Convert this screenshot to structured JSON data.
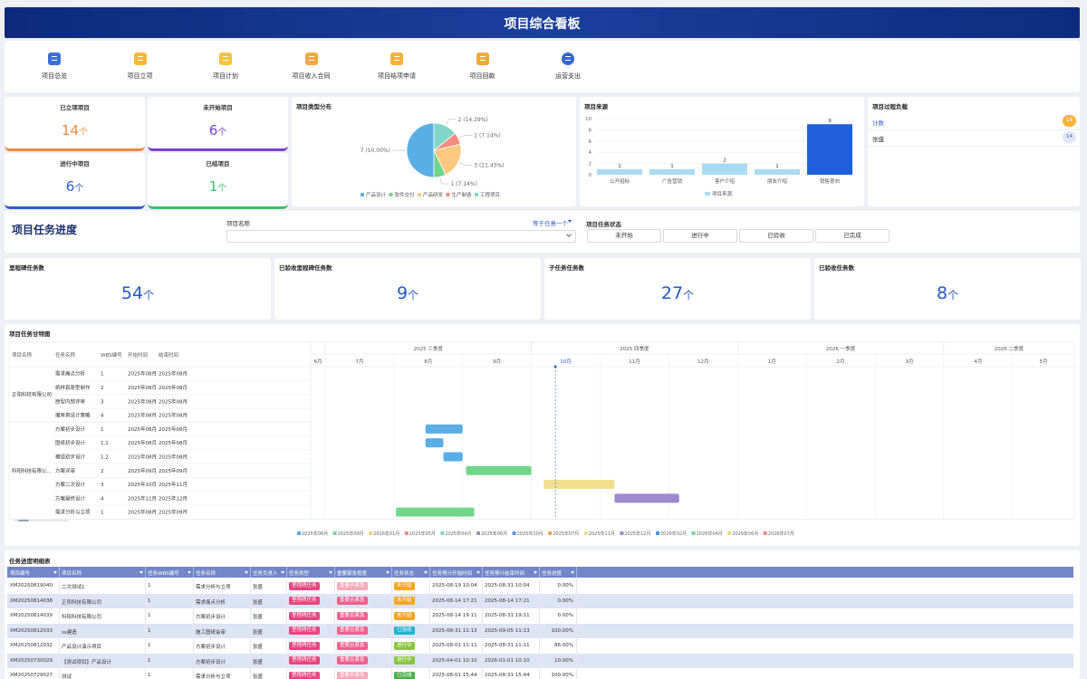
{
  "header": {
    "title": "项目综合看板"
  },
  "nav": [
    {
      "label": "项目总览",
      "color": "#3d6fd8"
    },
    {
      "label": "项目立项",
      "color": "#f5b83d"
    },
    {
      "label": "项目计划",
      "color": "#f5c242"
    },
    {
      "label": "项目收入合同",
      "color": "#f2a93b"
    },
    {
      "label": "项目结项申请",
      "color": "#f4b03f"
    },
    {
      "label": "项目回款",
      "color": "#f3a73a"
    },
    {
      "label": "运营支出",
      "color": "#3566cf"
    }
  ],
  "kpis": [
    {
      "title": "已立项项目",
      "value": 14,
      "unit": "个",
      "color": "#f08a3c"
    },
    {
      "title": "未开始项目",
      "value": 6,
      "unit": "个",
      "color": "#7b3fd8"
    },
    {
      "title": "进行中项目",
      "value": 6,
      "unit": "个",
      "color": "#2f5fc4"
    },
    {
      "title": "已结项目",
      "value": 1,
      "unit": "个",
      "color": "#3cbf6b"
    }
  ],
  "chart_data": [
    {
      "type": "pie",
      "title": "项目类型分布",
      "categories": [
        "产品设计",
        "软件交付",
        "产品研发",
        "生产制造",
        "工程项目"
      ],
      "values": [
        7,
        1,
        3,
        1,
        2
      ],
      "value_labels": [
        "7 (50.00%)",
        "1 (7.14%)",
        "3 (21.43%)",
        "1 (7.14%)",
        "2 (14.29%)"
      ],
      "colors": [
        "#5aaee6",
        "#6dd48a",
        "#fbc97f",
        "#f28b82",
        "#7fd6c8"
      ]
    },
    {
      "type": "bar",
      "title": "项目来源",
      "categories": [
        "公开招标",
        "广告营销",
        "客户介绍",
        "朋友介绍",
        "销售意向"
      ],
      "series": [
        {
          "name": "项目来源",
          "color": "#a9dcf3",
          "colors": [
            "#a9dcf3",
            "#a9dcf3",
            "#a9dcf3",
            "#a9dcf3",
            "#1f5fdc"
          ],
          "values": [
            1,
            1,
            2,
            1,
            9
          ]
        }
      ],
      "ylim": [
        0,
        10
      ],
      "yticks": [
        0,
        2,
        4,
        6,
        8,
        10
      ],
      "grid": true
    },
    {
      "type": "gantt",
      "title": "项目任务甘特图",
      "columns": [
        "项目名称",
        "任务名称",
        "WBS编号",
        "开始时间",
        "结束时间"
      ],
      "groups": [
        {
          "project": "正阳科技有限公司",
          "tasks": [
            {
              "task": "需求痛点分析",
              "wbs": "1",
              "start": "2025年08月",
              "end": "2025年08月",
              "bar": null,
              "color": null
            },
            {
              "task": "纸样真原型制作",
              "wbs": "2",
              "start": "2025年08月",
              "end": "2025年08月",
              "bar": null,
              "color": null
            },
            {
              "task": "原型内部评审",
              "wbs": "3",
              "start": "2025年08月",
              "end": "2025年08月",
              "bar": null,
              "color": null
            },
            {
              "task": "撞库真设计策略",
              "wbs": "4",
              "start": "2025年08月",
              "end": "2025年08月",
              "bar": null,
              "color": null
            }
          ]
        },
        {
          "project": "科阳科技有限公...",
          "tasks": [
            {
              "task": "方案初步设计",
              "wbs": "1",
              "start": "2025年08月",
              "end": "2025年08月",
              "bar": [
                8.46,
                9.0
              ],
              "color": "#5aaee6"
            },
            {
              "task": "图纸初步设计",
              "wbs": "1.1",
              "start": "2025年08月",
              "end": "2025年08月",
              "bar": [
                8.46,
                8.72
              ],
              "color": "#5aaee6"
            },
            {
              "task": "模组初步设计",
              "wbs": "1.2",
              "start": "2025年08月",
              "end": "2025年08月",
              "bar": [
                8.72,
                9.0
              ],
              "color": "#5aaee6"
            },
            {
              "task": "方案评审",
              "wbs": "2",
              "start": "2025年09月",
              "end": "2025年09月",
              "bar": [
                9.05,
                10.0
              ],
              "color": "#72d68a"
            },
            {
              "task": "方案二次设计",
              "wbs": "3",
              "start": "2025年10月",
              "end": "2025年11月",
              "bar": [
                10.18,
                11.21
              ],
              "color": "#f1df8e"
            },
            {
              "task": "方案最终设计",
              "wbs": "4",
              "start": "2025年11月",
              "end": "2025年12月",
              "bar": [
                11.21,
                12.15
              ],
              "color": "#9c88cf"
            },
            {
              "task": "需求分析与立项",
              "wbs": "1",
              "start": "2025年08月",
              "end": "2025年09月",
              "bar": [
                8.03,
                9.17
              ],
              "color": "#72d68a"
            }
          ]
        }
      ],
      "quarters": [
        {
          "label": "2025 三季度",
          "range": [
            7,
            10
          ]
        },
        {
          "label": "2025 四季度",
          "range": [
            10,
            13
          ]
        },
        {
          "label": "2026 一季度",
          "range": [
            13,
            16
          ]
        },
        {
          "label": "2026 二季度",
          "range": [
            16,
            19
          ]
        }
      ],
      "xlim": [
        6.79,
        17.9
      ],
      "xticks": [
        {
          "value": 6,
          "label": "6月"
        },
        {
          "value": 7,
          "label": "7月"
        },
        {
          "value": 8,
          "label": "8月"
        },
        {
          "value": 9,
          "label": "9月"
        },
        {
          "value": 10,
          "label": "10月"
        },
        {
          "value": 11,
          "label": "11月"
        },
        {
          "value": 12,
          "label": "12月"
        },
        {
          "value": 13,
          "label": "1月"
        },
        {
          "value": 14,
          "label": "2月"
        },
        {
          "value": 15,
          "label": "3月"
        },
        {
          "value": 16,
          "label": "4月"
        },
        {
          "value": 17,
          "label": "5月"
        }
      ],
      "today": 10.35,
      "legend": [
        {
          "name": "2025年08月",
          "color": "#5aaee6"
        },
        {
          "name": "2025年09月",
          "color": "#72d68a"
        },
        {
          "name": "2026年01月",
          "color": "#f5d77c"
        },
        {
          "name": "2025年05月",
          "color": "#f28b82"
        },
        {
          "name": "2025年04月",
          "color": "#7fd6c8"
        },
        {
          "name": "2025年06月",
          "color": "#8e9bb3"
        },
        {
          "name": "2025年10月",
          "color": "#5b8ff9"
        },
        {
          "name": "2025年07月",
          "color": "#f6a34b"
        },
        {
          "name": "2025年11月",
          "color": "#f1df8e"
        },
        {
          "name": "2025年12月",
          "color": "#9c88cf"
        },
        {
          "name": "2026年02月",
          "color": "#4a90e2"
        },
        {
          "name": "2026年04月",
          "color": "#72d68a"
        },
        {
          "name": "2026年06月",
          "color": "#f5d77c"
        },
        {
          "name": "2026年07月",
          "color": "#f28b82"
        }
      ]
    }
  ],
  "load_panel": {
    "title": "项目过程负载",
    "rows": [
      {
        "label": "计数",
        "value": 14,
        "color": "#f5b43a"
      },
      {
        "label": "张盛",
        "value": 14,
        "color": "#dfe8f8"
      }
    ]
  },
  "progress": {
    "title": "项目任务进度",
    "filter_label": "项目名称",
    "operator": "等于任意一个",
    "status_label": "项目任务状态",
    "statuses": [
      "未开始",
      "进行中",
      "已验收",
      "已完成"
    ]
  },
  "stats": [
    {
      "title": "里程碑任务数",
      "value": 54,
      "unit": "个"
    },
    {
      "title": "已验收里程碑任务数",
      "value": 9,
      "unit": "个"
    },
    {
      "title": "子任务任务数",
      "value": 27,
      "unit": "个"
    },
    {
      "title": "已验收任务数",
      "value": 8,
      "unit": "个"
    }
  ],
  "table": {
    "title": "任务进度明细表",
    "columns": [
      "项目编号",
      "项目名称",
      "任务WBS编号",
      "任务名称",
      "任务负责人",
      "任务类型",
      "重要紧急程度",
      "任务状态",
      "任务预计开始时间",
      "任务预计结束时间",
      "任务进度"
    ],
    "rows": [
      [
        "XM20250819040",
        "二次测试1",
        "1",
        "需求分析与立项",
        "张盛",
        {
          "text": "里程碑任务",
          "color": "#e8457f"
        },
        {
          "text": "重要不紧急",
          "color": "#f6a9b9"
        },
        {
          "text": "未开始",
          "color": "#f5a623"
        },
        "2025-08-19 10:04",
        "2025-08-31 10:04",
        "0.00%"
      ],
      [
        "XM20250814038",
        "正阳科技有限公司",
        "1",
        "需求痛点分析",
        "张盛",
        {
          "text": "里程碑任务",
          "color": "#e8457f"
        },
        {
          "text": "重要且紧急",
          "color": "#f0608f"
        },
        {
          "text": "未开始",
          "color": "#f5a623"
        },
        "2025-08-14 17:21",
        "2025-08-14 17:21",
        "0.00%"
      ],
      [
        "XM20250814039",
        "科阳科技有限公司",
        "1",
        "方案初步设计",
        "张盛",
        {
          "text": "里程碑任务",
          "color": "#e8457f"
        },
        {
          "text": "重要且紧急",
          "color": "#f0608f"
        },
        {
          "text": "未开始",
          "color": "#f5a623"
        },
        "2025-08-14 19:11",
        "2025-08-31 19:11",
        "0.00%"
      ],
      [
        "XM20250812033",
        "ss建造",
        "1",
        "施工图纸会审",
        "张盛",
        {
          "text": "里程碑任务",
          "color": "#e8457f"
        },
        {
          "text": "重要且紧急",
          "color": "#f0608f"
        },
        {
          "text": "已验收",
          "color": "#1fb4cc"
        },
        "2025-08-31 11:13",
        "2025-09-05 11:13",
        "100.00%"
      ],
      [
        "XM20250812032",
        "产品设计演示项目",
        "1",
        "方案初步设计",
        "张盛",
        {
          "text": "里程碑任务",
          "color": "#e8457f"
        },
        {
          "text": "重要且紧急",
          "color": "#f0608f"
        },
        {
          "text": "进行中",
          "color": "#8cc63f"
        },
        "2025-08-01 11:11",
        "2025-08-31 11:11",
        "88.00%"
      ],
      [
        "XM20250730029",
        "【测试项目】产品设计",
        "1",
        "方案初步设计",
        "张盛",
        {
          "text": "里程碑任务",
          "color": "#e8457f"
        },
        {
          "text": "重要且紧急",
          "color": "#f0608f"
        },
        {
          "text": "进行中",
          "color": "#8cc63f"
        },
        "2025-04-01 10:10",
        "2026-01-01 10:10",
        "10.00%"
      ],
      [
        "XM20250729027",
        "测试",
        "1",
        "需求分析与立项",
        "张盛",
        {
          "text": "里程碑任务",
          "color": "#e8457f"
        },
        {
          "text": "重要不紧急",
          "color": "#f6a9b9"
        },
        {
          "text": "已完成",
          "color": "#4cb050"
        },
        "2025-08-01 15:44",
        "2025-08-31 15:44",
        "100.00%"
      ]
    ]
  }
}
